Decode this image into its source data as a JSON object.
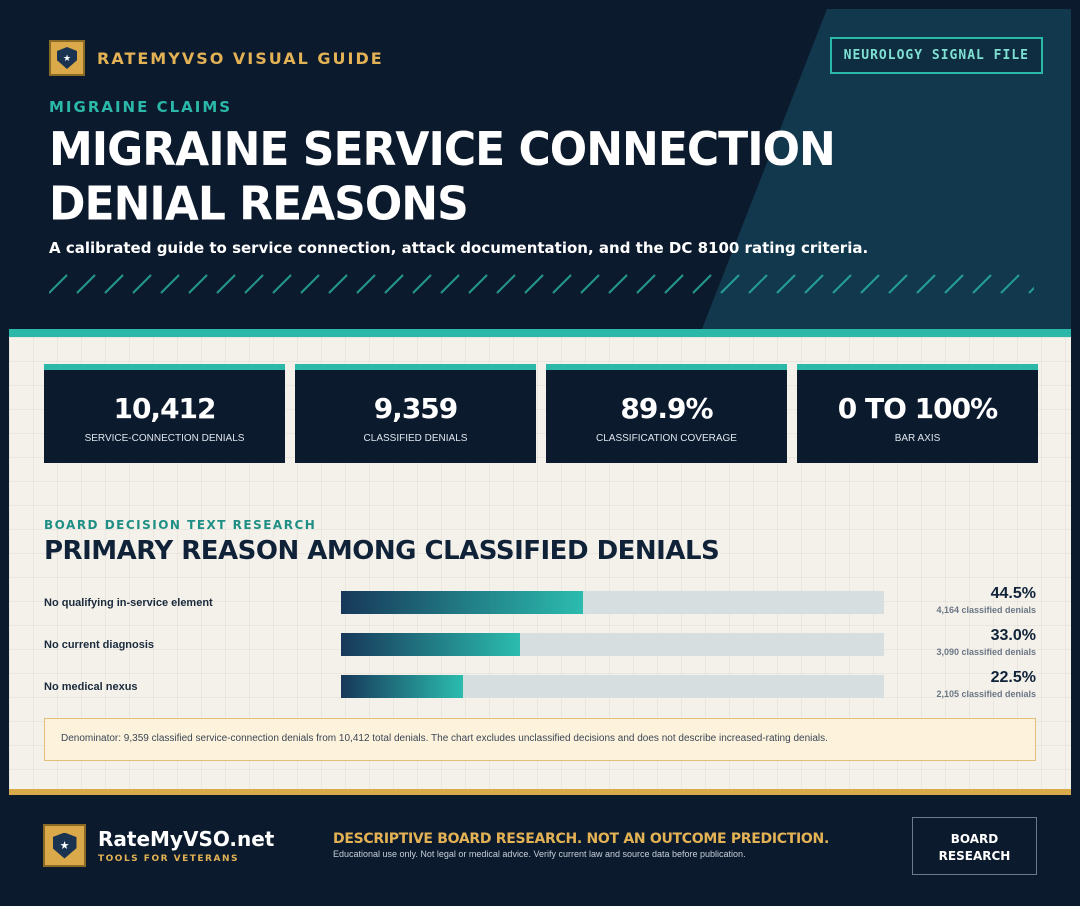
{
  "header": {
    "brand": "RATEMYVSO VISUAL GUIDE",
    "signal_file": "NEUROLOGY SIGNAL FILE",
    "kicker": "MIGRAINE CLAIMS",
    "title": "MIGRAINE SERVICE CONNECTION DENIAL REASONS",
    "subtitle": "A calibrated guide to service connection, attack documentation, and the DC 8100 rating criteria."
  },
  "stats": [
    {
      "value": "10,412",
      "label": "SERVICE-CONNECTION DENIALS"
    },
    {
      "value": "9,359",
      "label": "CLASSIFIED DENIALS"
    },
    {
      "value": "89.9%",
      "label": "CLASSIFICATION COVERAGE"
    },
    {
      "value": "0 TO 100%",
      "label": "BAR AXIS"
    }
  ],
  "section": {
    "kicker": "BOARD DECISION TEXT RESEARCH",
    "title": "PRIMARY REASON AMONG CLASSIFIED DENIALS"
  },
  "chart_data": {
    "type": "bar",
    "orientation": "horizontal",
    "title": "PRIMARY REASON AMONG CLASSIFIED DENIALS",
    "categories": [
      "No qualifying in-service element",
      "No current diagnosis",
      "No medical nexus"
    ],
    "values": [
      44.5,
      33.0,
      22.5
    ],
    "value_labels": [
      "44.5%",
      "33.0%",
      "22.5%"
    ],
    "counts": [
      "4,164 classified denials",
      "3,090 classified denials",
      "2,105 classified denials"
    ],
    "xlim": [
      0,
      100
    ],
    "colors": {
      "bar_start": "#17385a",
      "bar_end": "#2bbcae",
      "track": "#d7dedf"
    }
  },
  "note": "Denominator: 9,359 classified service-connection denials from 10,412 total denials. The chart excludes unclassified decisions and does not describe increased-rating denials.",
  "footer": {
    "brand_name": "RateMyVSO.net",
    "brand_tag": "TOOLS FOR VETERANS",
    "disclaimer_head": "DESCRIPTIVE BOARD RESEARCH. NOT AN OUTCOME PREDICTION.",
    "disclaimer_sub": "Educational use only. Not legal or medical advice. Verify current law and source data before publication.",
    "button_line1": "BOARD",
    "button_line2": "RESEARCH"
  },
  "icons": {
    "brand": "shield-star-icon"
  },
  "colors": {
    "navy": "#0c1a2d",
    "teal": "#2bb8a8",
    "gold": "#d9a94a",
    "cream": "#f4f1ea"
  }
}
